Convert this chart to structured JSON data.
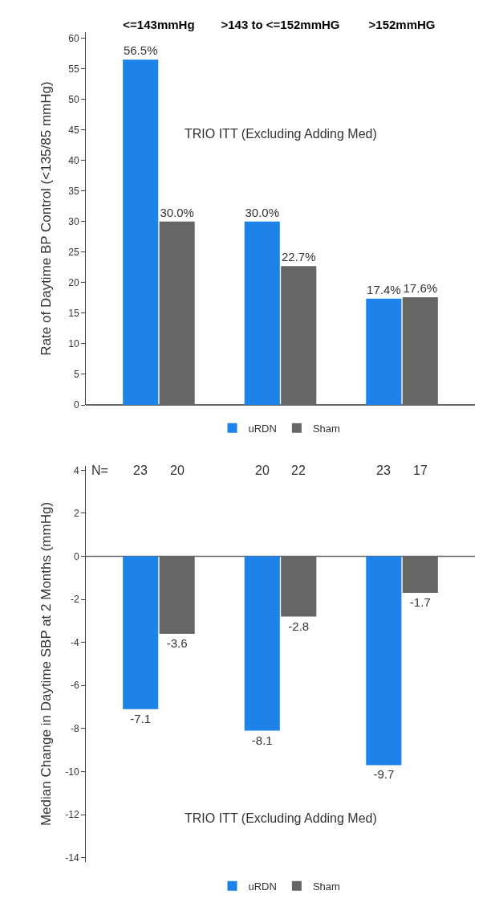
{
  "chart_data": [
    {
      "type": "bar",
      "ylabel": "Rate of Daytime BP Control (<135/85 mmHg)",
      "categories": [
        "<=143mmHg",
        ">143 to <=152mmHG",
        ">152mmHG"
      ],
      "series": [
        {
          "name": "uRDN",
          "color": "#1e83e8",
          "values": [
            56.5,
            30.0,
            17.4
          ],
          "value_labels": [
            "56.5%",
            "30.0%",
            "17.4%"
          ]
        },
        {
          "name": "Sham",
          "color": "#666666",
          "values": [
            30.0,
            22.7,
            17.6
          ],
          "value_labels": [
            "30.0%",
            "22.7%",
            "17.6%"
          ]
        }
      ],
      "ylim": [
        0,
        61
      ],
      "yticks": [
        0,
        5,
        10,
        15,
        20,
        25,
        30,
        35,
        40,
        45,
        50,
        55,
        60
      ],
      "grid": false,
      "legend": "bottom",
      "annotations": [
        "TRIO ITT (Excluding Adding Med)"
      ]
    },
    {
      "type": "bar",
      "ylabel": "Median Change in Daytime SBP at 2 Months (mmHg)",
      "categories": [
        null,
        null,
        null
      ],
      "series": [
        {
          "name": "uRDN",
          "color": "#1e83e8",
          "values": [
            -7.1,
            -8.1,
            -9.7
          ]
        },
        {
          "name": "Sham",
          "color": "#666666",
          "values": [
            -3.6,
            -2.8,
            -1.7
          ]
        }
      ],
      "ref_lines": [
        {
          "axis": "y",
          "value": 0,
          "color": "#666666"
        }
      ],
      "ylim": [
        -14.2,
        4.2
      ],
      "yticks": [
        -14,
        -12,
        -10,
        -8,
        -6,
        -4,
        -2,
        0,
        2,
        4
      ],
      "grid": false,
      "legend": "bottom",
      "data_labels": true,
      "tick_labels": "y",
      "annotations": [
        "TRIO ITT (Excluding Adding Med)",
        "N=",
        "23",
        "20",
        "20",
        "22",
        "23",
        "17"
      ]
    }
  ]
}
